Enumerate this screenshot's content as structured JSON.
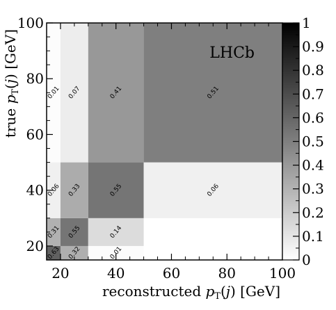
{
  "chart_data": {
    "type": "heatmap",
    "title": "",
    "watermark": "LHCb",
    "xlabel": "reconstructed p_T(j) [GeV]",
    "ylabel": "true p_T(j) [GeV]",
    "xlim": [
      15,
      100
    ],
    "ylim": [
      15,
      100
    ],
    "xticks": [
      20,
      40,
      60,
      80,
      100
    ],
    "yticks": [
      20,
      40,
      60,
      80,
      100
    ],
    "colorbar": {
      "range": [
        0,
        1
      ],
      "ticks": [
        "0",
        "0.1",
        "0.2",
        "0.3",
        "0.4",
        "0.5",
        "0.6",
        "0.7",
        "0.8",
        "0.9",
        "1"
      ],
      "low_color": "#ffffff",
      "high_color": "#000000"
    },
    "x_bin_edges": [
      15,
      20,
      30,
      50,
      100
    ],
    "y_bin_edges": [
      15,
      20,
      30,
      50,
      100
    ],
    "cells": [
      {
        "x": [
          15,
          20
        ],
        "y": [
          15,
          20
        ],
        "value": 0.63,
        "label": "0.63"
      },
      {
        "x": [
          20,
          30
        ],
        "y": [
          15,
          20
        ],
        "value": 0.32,
        "label": "0.32"
      },
      {
        "x": [
          30,
          50
        ],
        "y": [
          15,
          20
        ],
        "value": 0.01,
        "label": "0.01"
      },
      {
        "x": [
          15,
          20
        ],
        "y": [
          20,
          30
        ],
        "value": 0.31,
        "label": "0.31"
      },
      {
        "x": [
          20,
          30
        ],
        "y": [
          20,
          30
        ],
        "value": 0.55,
        "label": "0.55"
      },
      {
        "x": [
          30,
          50
        ],
        "y": [
          20,
          30
        ],
        "value": 0.14,
        "label": "0.14"
      },
      {
        "x": [
          15,
          20
        ],
        "y": [
          30,
          50
        ],
        "value": 0.06,
        "label": "0.06"
      },
      {
        "x": [
          20,
          30
        ],
        "y": [
          30,
          50
        ],
        "value": 0.33,
        "label": "0.33"
      },
      {
        "x": [
          30,
          50
        ],
        "y": [
          30,
          50
        ],
        "value": 0.55,
        "label": "0.55"
      },
      {
        "x": [
          50,
          100
        ],
        "y": [
          30,
          50
        ],
        "value": 0.06,
        "label": "0.06"
      },
      {
        "x": [
          15,
          20
        ],
        "y": [
          50,
          100
        ],
        "value": 0.01,
        "label": "0.01"
      },
      {
        "x": [
          20,
          30
        ],
        "y": [
          50,
          100
        ],
        "value": 0.07,
        "label": "0.07"
      },
      {
        "x": [
          30,
          50
        ],
        "y": [
          50,
          100
        ],
        "value": 0.41,
        "label": "0.41"
      },
      {
        "x": [
          50,
          100
        ],
        "y": [
          50,
          100
        ],
        "value": 0.51,
        "label": "0.51"
      }
    ]
  }
}
